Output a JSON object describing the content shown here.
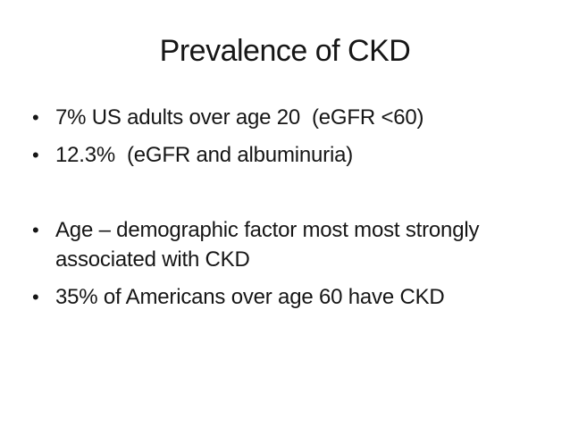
{
  "slide": {
    "title": "Prevalence of CKD",
    "bullet_char": "•",
    "bullets": [
      {
        "text": "7% US adults over age 20  (eGFR <60)"
      },
      {
        "text": "12.3%  (eGFR and albuminuria)"
      },
      {
        "text": "Age – demographic factor most most strongly associated with CKD"
      },
      {
        "text": "35% of Americans over age 60 have CKD"
      }
    ],
    "colors": {
      "background": "#ffffff",
      "text": "#161616"
    }
  }
}
